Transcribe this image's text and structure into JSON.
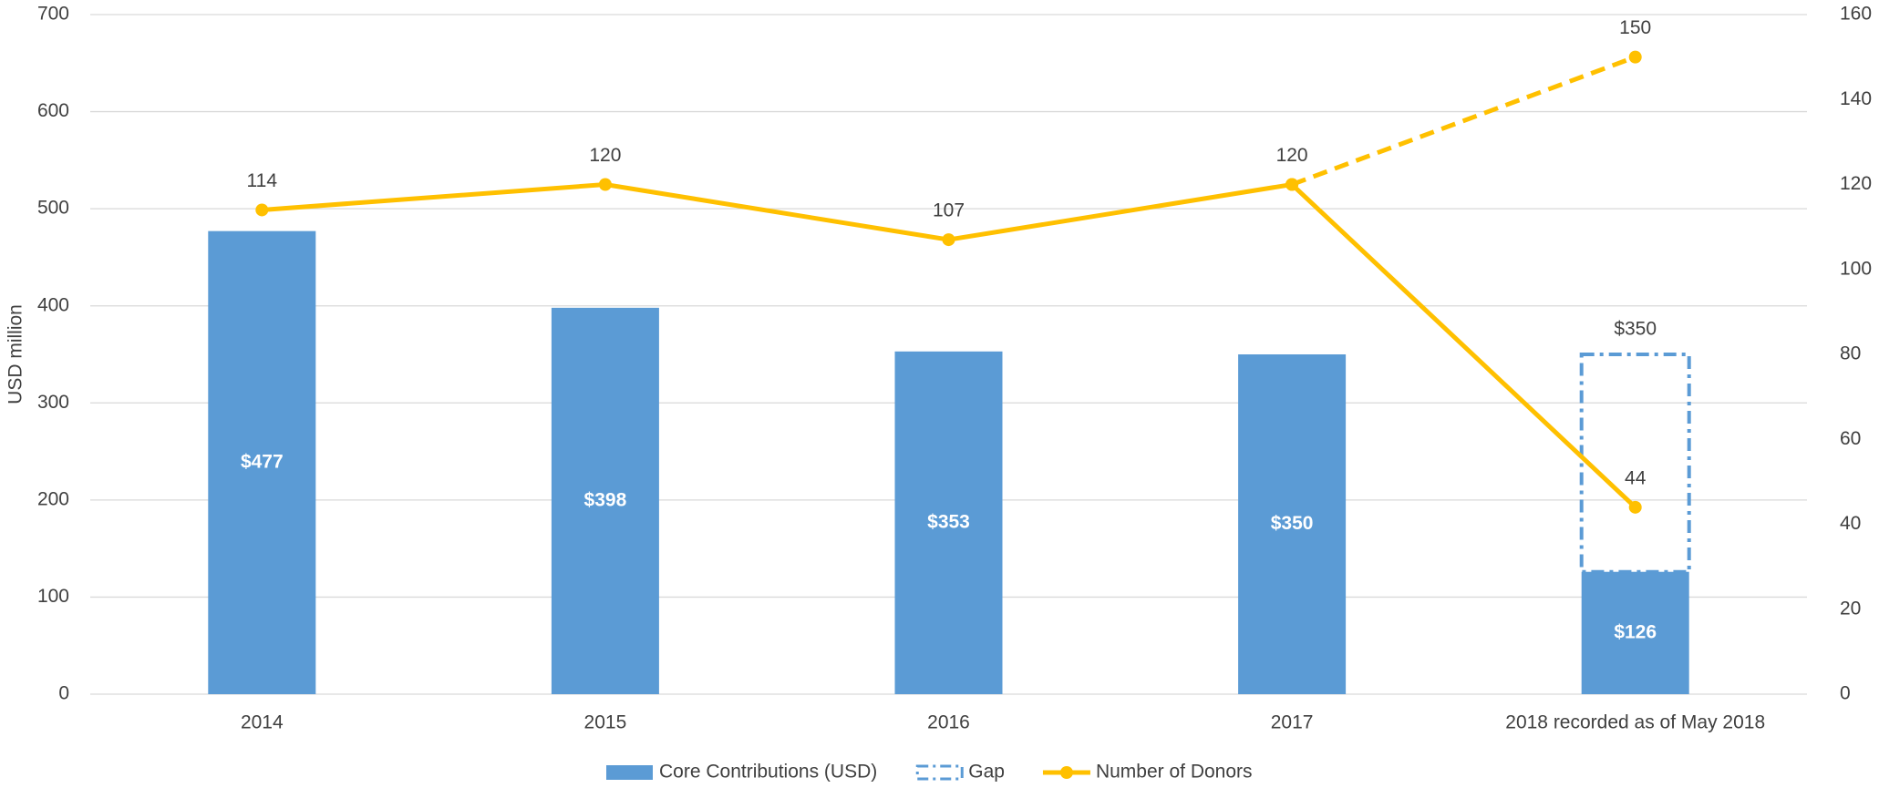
{
  "chart_data": {
    "type": "bar-line",
    "y_label": "USD million",
    "categories": [
      "2014",
      "2015",
      "2016",
      "2017",
      "2018 recorded as of May 2018"
    ],
    "ylim": [
      0,
      700
    ],
    "yticks": [
      0,
      100,
      200,
      300,
      400,
      500,
      600,
      700
    ],
    "y2lim": [
      0,
      160
    ],
    "y2ticks": [
      0,
      20,
      40,
      60,
      80,
      100,
      120,
      140,
      160
    ],
    "grid": true,
    "series": [
      {
        "name": "Core Contributions (USD)",
        "kind": "bar",
        "color": "#5b9bd5",
        "values": [
          477,
          398,
          353,
          350,
          126
        ],
        "value_labels": [
          "$477",
          "$398",
          "$353",
          "$350",
          "$126"
        ]
      },
      {
        "name": "Gap",
        "kind": "gap",
        "color": "#5b9bd5",
        "values": [
          null,
          null,
          null,
          null,
          350
        ],
        "value_labels": [
          null,
          null,
          null,
          null,
          "$350"
        ]
      },
      {
        "name": "Number of Donors",
        "kind": "line",
        "axis": "y2",
        "color": "#ffc000",
        "values": [
          114,
          120,
          107,
          120,
          44
        ]
      },
      {
        "kind": "line",
        "dashed": true,
        "axis": "y2",
        "color": "#ffc000",
        "values": [
          null,
          null,
          null,
          120,
          150
        ]
      }
    ]
  }
}
